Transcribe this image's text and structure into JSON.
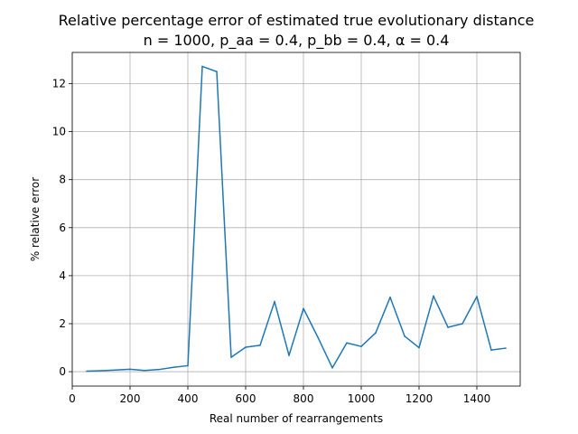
{
  "chart_data": {
    "type": "line",
    "title": "Relative percentage error of estimated true evolutionary distance",
    "subtitle": "n = 1000, p_aa = 0.4, p_bb = 0.4, α = 0.4",
    "xlabel": "Real number of rearrangements",
    "ylabel": "% relative error",
    "xlim": [
      0,
      1550
    ],
    "ylim": [
      -0.6,
      13.3
    ],
    "xticks": [
      0,
      200,
      400,
      600,
      800,
      1000,
      1200,
      1400
    ],
    "yticks": [
      0,
      2,
      4,
      6,
      8,
      10,
      12
    ],
    "grid": true,
    "series": [
      {
        "color": "#1f77b4",
        "x": [
          50,
          100,
          150,
          200,
          250,
          300,
          350,
          400,
          450,
          500,
          550,
          600,
          650,
          700,
          750,
          800,
          850,
          900,
          950,
          1000,
          1050,
          1100,
          1150,
          1200,
          1250,
          1300,
          1350,
          1400,
          1450,
          1500
        ],
        "y": [
          0.02,
          0.04,
          0.07,
          0.1,
          0.05,
          0.09,
          0.18,
          0.25,
          12.72,
          12.5,
          0.6,
          1.02,
          1.1,
          2.92,
          0.68,
          2.63,
          1.43,
          0.16,
          1.2,
          1.05,
          1.62,
          3.1,
          1.48,
          1.0,
          3.15,
          1.85,
          2.0,
          3.13,
          0.9,
          0.98
        ]
      }
    ]
  }
}
